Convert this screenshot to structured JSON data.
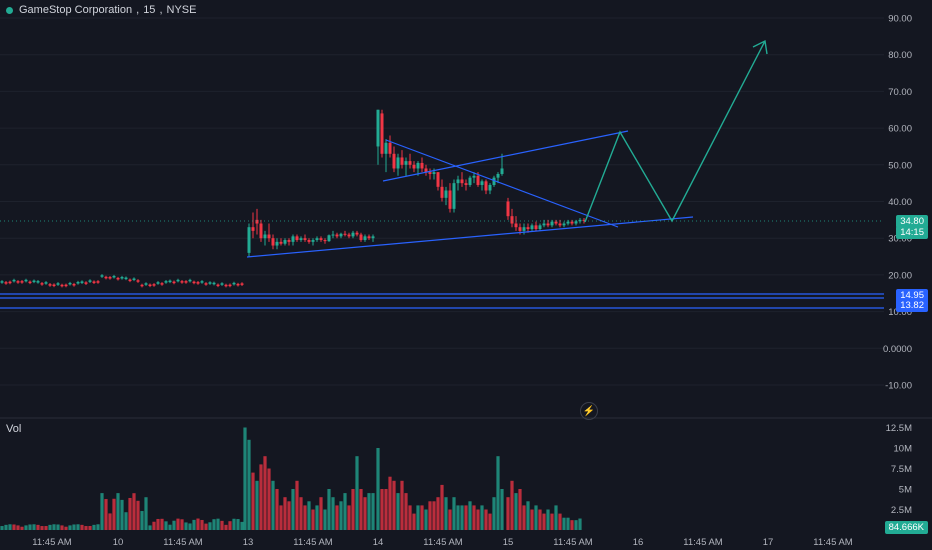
{
  "header": {
    "symbol": "GameStop Corporation",
    "interval": "15",
    "exchange": "NYSE",
    "sep1": ",",
    "sep2": ","
  },
  "volume_label": "Vol",
  "price_tags": {
    "last_price": "34.80",
    "countdown": "14:15",
    "level_top": "14.95",
    "level_bottom": "13.82"
  },
  "volume_tag": "84.666K",
  "colors": {
    "up": "#22ab94",
    "down": "#f23645",
    "drawing": "#2962ff",
    "projection": "#22ab94",
    "background": "#141721"
  },
  "chart_data": {
    "type": "candlestick",
    "price_axis_ticks": [
      "90.00",
      "80.00",
      "70.00",
      "60.00",
      "50.00",
      "40.00",
      "30.00",
      "20.00",
      "10.00",
      "0.0000",
      "-10.00"
    ],
    "price_axis_values": [
      90,
      80,
      70,
      60,
      50,
      40,
      30,
      20,
      10,
      0,
      -10
    ],
    "volume_axis_ticks": [
      "12.5M",
      "10M",
      "7.5M",
      "5M",
      "2.5M"
    ],
    "volume_axis_values": [
      12.5,
      10,
      7.5,
      5,
      2.5
    ],
    "x_ticks": [
      "11:45 AM",
      "10",
      "11:45 AM",
      "13",
      "11:45 AM",
      "14",
      "11:45 AM",
      "15",
      "11:45 AM",
      "16",
      "11:45 AM",
      "17",
      "11:45 AM"
    ],
    "ylim": [
      -15,
      95
    ],
    "horizontal_levels": [
      14.95,
      13.82,
      10.7
    ]
  }
}
